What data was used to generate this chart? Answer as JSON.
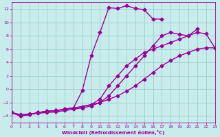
{
  "xlabel": "Windchill (Refroidissement éolien,°C)",
  "bg_color": "#c8ecec",
  "line_color": "#990099",
  "markersize": 2.5,
  "linewidth": 1.0,
  "xlim": [
    0,
    23
  ],
  "ylim": [
    -5,
    13
  ],
  "yticks": [
    -4,
    -2,
    0,
    2,
    4,
    6,
    8,
    10,
    12
  ],
  "xticks": [
    0,
    1,
    2,
    3,
    4,
    5,
    6,
    7,
    8,
    9,
    10,
    11,
    12,
    13,
    14,
    15,
    16,
    17,
    18,
    19,
    20,
    21,
    22,
    23
  ],
  "grid_color": "#9ecece",
  "lines": [
    {
      "x": [
        0,
        1,
        2,
        3,
        4,
        5,
        6,
        7,
        8,
        9,
        10,
        11,
        12,
        13,
        14,
        15,
        16,
        17
      ],
      "y": [
        -3.5,
        -4.0,
        -3.8,
        -3.5,
        -3.3,
        -3.2,
        -3.0,
        -2.8,
        -0.2,
        5.0,
        8.5,
        12.2,
        12.1,
        12.5,
        12.1,
        11.9,
        10.5,
        10.5
      ]
    },
    {
      "x": [
        0,
        1,
        2,
        3,
        4,
        5,
        6,
        7,
        8,
        9,
        10,
        11,
        12,
        13,
        14,
        15,
        16,
        17,
        18,
        19,
        20,
        21,
        22,
        23
      ],
      "y": [
        -3.5,
        -4.0,
        -3.8,
        -3.5,
        -3.3,
        -3.2,
        -3.0,
        -2.8,
        -2.6,
        -2.3,
        -1.5,
        0.5,
        2.0,
        3.5,
        4.5,
        5.5,
        6.0,
        6.5,
        7.0,
        7.5,
        8.0,
        8.5,
        8.3,
        6.2
      ]
    },
    {
      "x": [
        0,
        1,
        2,
        3,
        4,
        5,
        6,
        7,
        8,
        9,
        10,
        11,
        12,
        13,
        14,
        15,
        16,
        17,
        18,
        19,
        20,
        21
      ],
      "y": [
        -3.5,
        -4.0,
        -3.8,
        -3.5,
        -3.3,
        -3.2,
        -3.0,
        -2.8,
        -2.6,
        -2.3,
        -2.0,
        -1.0,
        0.5,
        2.0,
        3.5,
        5.0,
        6.5,
        8.0,
        8.5,
        8.2,
        8.0,
        9.0
      ]
    },
    {
      "x": [
        0,
        1,
        2,
        3,
        4,
        5,
        6,
        7,
        8,
        9,
        10,
        11,
        12,
        13,
        14,
        15,
        16,
        17,
        18,
        19,
        20,
        21,
        22,
        23
      ],
      "y": [
        -3.5,
        -3.8,
        -3.7,
        -3.6,
        -3.5,
        -3.4,
        -3.2,
        -3.0,
        -2.8,
        -2.5,
        -2.0,
        -1.5,
        -1.0,
        -0.3,
        0.5,
        1.5,
        2.5,
        3.5,
        4.3,
        5.0,
        5.5,
        6.0,
        6.2,
        6.2
      ]
    }
  ]
}
